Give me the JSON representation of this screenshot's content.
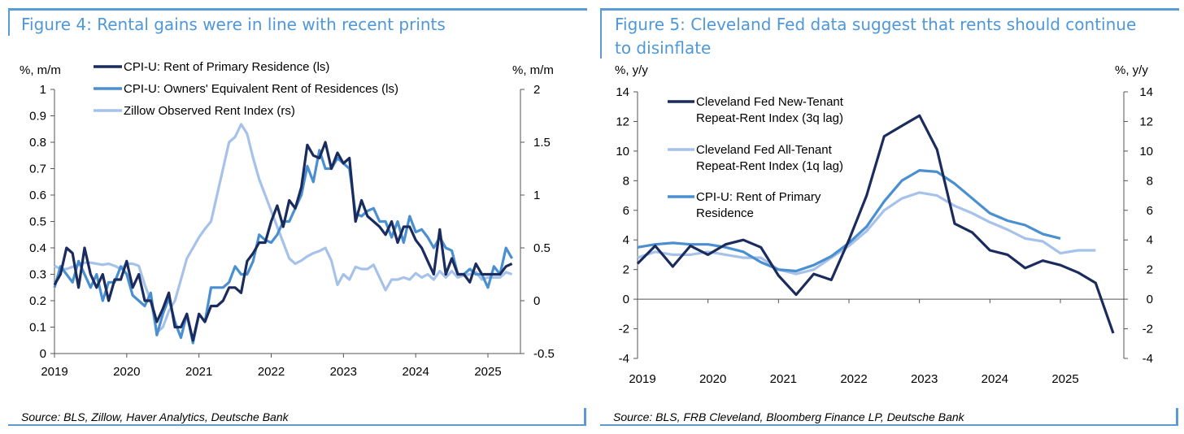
{
  "left": {
    "title": "Figure 4: Rental gains were in line with recent prints",
    "source": "Source: BLS, Zillow, Haver Analytics, Deutsche Bank",
    "chart_data": {
      "type": "line",
      "ylabel_left": "%, m/m",
      "ylabel_right": "%, m/m",
      "y_left_lim": [
        0,
        1
      ],
      "y_left_ticks": [
        "0",
        "0.1",
        "0.2",
        "0.3",
        "0.4",
        "0.5",
        "0.6",
        "0.7",
        "0.8",
        "0.9",
        "1"
      ],
      "y_right_lim": [
        -0.5,
        2
      ],
      "y_right_ticks": [
        "-0.5",
        "0",
        "0.5",
        "1",
        "1.5",
        "2"
      ],
      "x_ticks": [
        "2019",
        "2020",
        "2021",
        "2022",
        "2023",
        "2024",
        "2025"
      ],
      "x_range": [
        2019,
        2025.45
      ],
      "grid": false,
      "legend_position": "top-left",
      "series": [
        {
          "name": "CPI-U: Rent of Primary Residence (ls)",
          "axis": "left",
          "color": "#1a2b5e",
          "x": [
            2019.0,
            2019.083,
            2019.167,
            2019.25,
            2019.333,
            2019.417,
            2019.5,
            2019.583,
            2019.667,
            2019.75,
            2019.833,
            2019.917,
            2020.0,
            2020.083,
            2020.167,
            2020.25,
            2020.333,
            2020.417,
            2020.5,
            2020.583,
            2020.667,
            2020.75,
            2020.833,
            2020.917,
            2021.0,
            2021.083,
            2021.167,
            2021.25,
            2021.333,
            2021.417,
            2021.5,
            2021.583,
            2021.667,
            2021.75,
            2021.833,
            2021.917,
            2022.0,
            2022.083,
            2022.167,
            2022.25,
            2022.333,
            2022.417,
            2022.5,
            2022.583,
            2022.667,
            2022.75,
            2022.833,
            2022.917,
            2023.0,
            2023.083,
            2023.167,
            2023.25,
            2023.333,
            2023.417,
            2023.5,
            2023.583,
            2023.667,
            2023.75,
            2023.833,
            2023.917,
            2024.0,
            2024.083,
            2024.167,
            2024.25,
            2024.333,
            2024.417,
            2024.5,
            2024.583,
            2024.667,
            2024.75,
            2024.833,
            2024.917,
            2025.0,
            2025.083,
            2025.167,
            2025.25,
            2025.333
          ],
          "values": [
            0.26,
            0.3,
            0.4,
            0.38,
            0.25,
            0.4,
            0.3,
            0.25,
            0.3,
            0.2,
            0.28,
            0.28,
            0.35,
            0.25,
            0.3,
            0.2,
            0.2,
            0.12,
            0.17,
            0.23,
            0.1,
            0.1,
            0.15,
            0.05,
            0.15,
            0.12,
            0.18,
            0.18,
            0.2,
            0.25,
            0.25,
            0.23,
            0.35,
            0.38,
            0.42,
            0.42,
            0.5,
            0.56,
            0.48,
            0.58,
            0.55,
            0.63,
            0.79,
            0.75,
            0.74,
            0.8,
            0.7,
            0.76,
            0.72,
            0.74,
            0.5,
            0.58,
            0.52,
            0.5,
            0.48,
            0.45,
            0.5,
            0.42,
            0.48,
            0.48,
            0.43,
            0.4,
            0.35,
            0.3,
            0.47,
            0.3,
            0.36,
            0.3,
            0.3,
            0.27,
            0.34,
            0.3,
            0.3,
            0.3,
            0.3,
            0.33,
            0.34
          ]
        },
        {
          "name": "CPI-U: Owners' Equivalent Rent of Residences (ls)",
          "axis": "left",
          "color": "#4a8fd0",
          "x": [
            2019.0,
            2019.083,
            2019.167,
            2019.25,
            2019.333,
            2019.417,
            2019.5,
            2019.583,
            2019.667,
            2019.75,
            2019.833,
            2019.917,
            2020.0,
            2020.083,
            2020.167,
            2020.25,
            2020.333,
            2020.417,
            2020.5,
            2020.583,
            2020.667,
            2020.75,
            2020.833,
            2020.917,
            2021.0,
            2021.083,
            2021.167,
            2021.25,
            2021.333,
            2021.417,
            2021.5,
            2021.583,
            2021.667,
            2021.75,
            2021.833,
            2021.917,
            2022.0,
            2022.083,
            2022.167,
            2022.25,
            2022.333,
            2022.417,
            2022.5,
            2022.583,
            2022.667,
            2022.75,
            2022.833,
            2022.917,
            2023.0,
            2023.083,
            2023.167,
            2023.25,
            2023.333,
            2023.417,
            2023.5,
            2023.583,
            2023.667,
            2023.75,
            2023.833,
            2023.917,
            2024.0,
            2024.083,
            2024.167,
            2024.25,
            2024.333,
            2024.417,
            2024.5,
            2024.583,
            2024.667,
            2024.75,
            2024.833,
            2024.917,
            2025.0,
            2025.083,
            2025.167,
            2025.25,
            2025.333
          ],
          "values": [
            0.25,
            0.33,
            0.3,
            0.27,
            0.35,
            0.3,
            0.25,
            0.3,
            0.2,
            0.27,
            0.27,
            0.33,
            0.3,
            0.22,
            0.2,
            0.18,
            0.23,
            0.07,
            0.15,
            0.21,
            0.12,
            0.06,
            0.15,
            0.04,
            0.15,
            0.12,
            0.25,
            0.25,
            0.25,
            0.27,
            0.33,
            0.3,
            0.3,
            0.35,
            0.45,
            0.43,
            0.42,
            0.45,
            0.5,
            0.5,
            0.55,
            0.6,
            0.71,
            0.65,
            0.77,
            0.7,
            0.7,
            0.74,
            0.72,
            0.7,
            0.53,
            0.52,
            0.54,
            0.55,
            0.5,
            0.5,
            0.44,
            0.5,
            0.42,
            0.52,
            0.46,
            0.47,
            0.44,
            0.4,
            0.44,
            0.4,
            0.39,
            0.3,
            0.3,
            0.32,
            0.3,
            0.3,
            0.25,
            0.33,
            0.3,
            0.4,
            0.36
          ]
        },
        {
          "name": "Zillow Observed Rent Index (rs)",
          "axis": "right",
          "color": "#a7c2ea",
          "x": [
            2019.0,
            2019.083,
            2019.167,
            2019.25,
            2019.333,
            2019.417,
            2019.5,
            2019.583,
            2019.667,
            2019.75,
            2019.833,
            2019.917,
            2020.0,
            2020.083,
            2020.167,
            2020.25,
            2020.333,
            2020.417,
            2020.5,
            2020.583,
            2020.667,
            2020.75,
            2020.833,
            2020.917,
            2021.0,
            2021.083,
            2021.167,
            2021.25,
            2021.333,
            2021.417,
            2021.5,
            2021.583,
            2021.667,
            2021.75,
            2021.833,
            2021.917,
            2022.0,
            2022.083,
            2022.167,
            2022.25,
            2022.333,
            2022.417,
            2022.5,
            2022.583,
            2022.667,
            2022.75,
            2022.833,
            2022.917,
            2023.0,
            2023.083,
            2023.167,
            2023.25,
            2023.333,
            2023.417,
            2023.5,
            2023.583,
            2023.667,
            2023.75,
            2023.833,
            2023.917,
            2024.0,
            2024.083,
            2024.167,
            2024.25,
            2024.333,
            2024.417,
            2024.5,
            2024.583,
            2024.667,
            2024.75,
            2024.833,
            2024.917,
            2025.0,
            2025.083,
            2025.167,
            2025.25,
            2025.333
          ],
          "values": [
            0.33,
            0.3,
            0.3,
            0.32,
            0.34,
            0.36,
            0.36,
            0.35,
            0.34,
            0.35,
            0.33,
            0.3,
            0.35,
            0.35,
            0.33,
            0.15,
            0.0,
            -0.3,
            -0.25,
            -0.1,
            0.0,
            0.2,
            0.4,
            0.5,
            0.6,
            0.68,
            0.75,
            1.0,
            1.25,
            1.5,
            1.55,
            1.67,
            1.58,
            1.35,
            1.15,
            1.0,
            0.85,
            0.7,
            0.55,
            0.4,
            0.35,
            0.38,
            0.42,
            0.45,
            0.47,
            0.5,
            0.38,
            0.15,
            0.25,
            0.2,
            0.32,
            0.3,
            0.3,
            0.34,
            0.22,
            0.1,
            0.2,
            0.2,
            0.22,
            0.2,
            0.26,
            0.22,
            0.25,
            0.2,
            0.28,
            0.22,
            0.28,
            0.22,
            0.24,
            0.25,
            0.27,
            0.2,
            0.22,
            0.22,
            0.22,
            0.27,
            0.25
          ]
        }
      ]
    }
  },
  "right": {
    "title": "Figure 5: Cleveland Fed data suggest that rents should continue to disinflate",
    "title_lines": [
      "Figure 5: Cleveland Fed data suggest that rents should continue",
      "to disinflate"
    ],
    "source": "Source: BLS, FRB Cleveland, Bloomberg Finance LP, Deutsche Bank",
    "chart_data": {
      "type": "line",
      "ylabel_left": "%, y/y",
      "ylabel_right": "%, y/y",
      "y_lim": [
        -4,
        14
      ],
      "y_ticks": [
        "-4",
        "-2",
        "0",
        "2",
        "4",
        "6",
        "8",
        "10",
        "12",
        "14"
      ],
      "x_ticks": [
        "2019",
        "2020",
        "2021",
        "2022",
        "2023",
        "2024",
        "2025"
      ],
      "x_range": [
        2019,
        2025.9
      ],
      "grid": false,
      "legend_position": "top-left",
      "series": [
        {
          "name": "Cleveland Fed New-Tenant Repeat-Rent Index (3q lag)",
          "legend_lines": [
            "Cleveland Fed New-Tenant",
            "Repeat-Rent Index (3q lag)"
          ],
          "color": "#1a2b5e",
          "x": [
            2019.0,
            2019.25,
            2019.5,
            2019.75,
            2020.0,
            2020.25,
            2020.5,
            2020.75,
            2021.0,
            2021.25,
            2021.5,
            2021.75,
            2022.0,
            2022.25,
            2022.5,
            2022.75,
            2023.0,
            2023.25,
            2023.5,
            2023.75,
            2024.0,
            2024.25,
            2024.5,
            2024.75,
            2025.0,
            2025.25,
            2025.5,
            2025.75
          ],
          "values": [
            2.4,
            3.6,
            2.2,
            3.6,
            3.0,
            3.7,
            4.0,
            3.5,
            1.6,
            0.3,
            1.7,
            1.3,
            4.0,
            7.0,
            11.0,
            11.7,
            12.4,
            10.1,
            5.1,
            4.5,
            3.3,
            3.0,
            2.1,
            2.6,
            2.3,
            1.8,
            1.1,
            -2.3
          ]
        },
        {
          "name": "Cleveland Fed All-Tenant Repeat-Rent Index (1q lag)",
          "legend_lines": [
            "Cleveland Fed All-Tenant",
            "Repeat-Rent Index (1q lag)"
          ],
          "color": "#a7c2ea",
          "x": [
            2019.0,
            2019.25,
            2019.5,
            2019.75,
            2020.0,
            2020.25,
            2020.5,
            2020.75,
            2021.0,
            2021.25,
            2021.5,
            2021.75,
            2022.0,
            2022.25,
            2022.5,
            2022.75,
            2023.0,
            2023.25,
            2023.5,
            2023.75,
            2024.0,
            2024.25,
            2024.5,
            2024.75,
            2025.0,
            2025.25,
            2025.5
          ],
          "values": [
            2.8,
            3.2,
            3.0,
            3.0,
            3.2,
            3.0,
            2.8,
            2.8,
            2.0,
            1.7,
            2.0,
            2.8,
            3.6,
            4.6,
            6.0,
            6.8,
            7.2,
            7.0,
            6.3,
            5.8,
            5.2,
            4.7,
            4.1,
            3.9,
            3.1,
            3.3,
            3.3
          ]
        },
        {
          "name": "CPI-U: Rent of Primary Residence",
          "legend_lines": [
            "CPI-U: Rent of Primary",
            "Residence"
          ],
          "color": "#4a8fd0",
          "x": [
            2019.0,
            2019.25,
            2019.5,
            2019.75,
            2020.0,
            2020.25,
            2020.5,
            2020.75,
            2021.0,
            2021.25,
            2021.5,
            2021.75,
            2022.0,
            2022.25,
            2022.5,
            2022.75,
            2023.0,
            2023.25,
            2023.5,
            2023.75,
            2024.0,
            2024.25,
            2024.5,
            2024.75,
            2025.0
          ],
          "values": [
            3.5,
            3.7,
            3.8,
            3.7,
            3.7,
            3.5,
            3.2,
            2.5,
            2.0,
            1.9,
            2.3,
            2.9,
            3.8,
            4.9,
            6.6,
            8.0,
            8.7,
            8.6,
            7.8,
            6.8,
            5.8,
            5.3,
            5.0,
            4.4,
            4.1
          ]
        }
      ]
    }
  }
}
